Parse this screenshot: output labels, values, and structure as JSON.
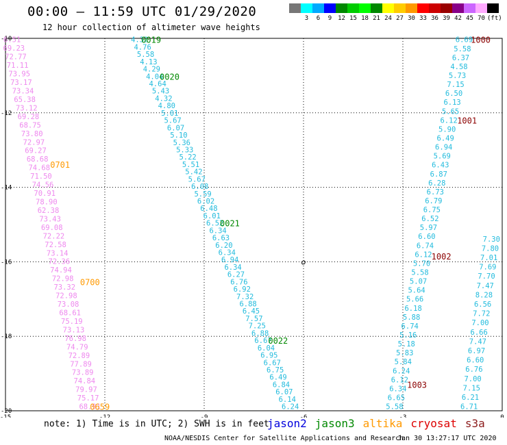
{
  "title": "00:00 – 11:59 UTC 01/29/2020",
  "subtitle": "12 hour collection of altimeter wave heights",
  "scale": {
    "labels": [
      "",
      "3",
      "6",
      "9",
      "12",
      "15",
      "18",
      "21",
      "24",
      "27",
      "30",
      "33",
      "36",
      "39",
      "42",
      "45",
      "70",
      "(ft)"
    ],
    "colors": [
      "#777777",
      "#00ffff",
      "#00aaff",
      "#0000ff",
      "#008800",
      "#00cc00",
      "#00ff00",
      "#008800",
      "#ffff00",
      "#ffcc00",
      "#ff9900",
      "#ff0000",
      "#cc0000",
      "#990000",
      "#880088",
      "#cc66ff",
      "#ffaaff",
      "#000000"
    ]
  },
  "note": "note: 1) Time is in UTC; 2) SWH is in feet",
  "legend": [
    {
      "name": "jason2",
      "color": "#0000dd"
    },
    {
      "name": "jason3",
      "color": "#008800"
    },
    {
      "name": "altika",
      "color": "#ff9900"
    },
    {
      "name": "cryosat",
      "color": "#dd0000"
    },
    {
      "name": "s3a",
      "color": "#8b1a1a"
    }
  ],
  "footer_left": "NOAA/NESDIS Center for Satellite Applications and Research",
  "footer_right": "Jan 30 13:27:17 UTC 2020",
  "chart_data": {
    "type": "scatter",
    "xlim": [
      -15,
      0
    ],
    "ylim": [
      -20,
      -10
    ],
    "xticks": [
      "-15",
      "-12",
      "-9",
      "-6",
      "-3",
      "0"
    ],
    "yticks": [
      "-10",
      "-12",
      "-14",
      "-16",
      "-18",
      "-20"
    ],
    "grid": true,
    "annotation": "o",
    "tracks": [
      {
        "color": "#ee88ee",
        "time_color": "#ff9900",
        "start": [
          -14.8,
          -10.05
        ],
        "end": [
          -12.45,
          -19.9
        ],
        "times": [
          {
            "label": "0701",
            "at": 0.34,
            "dx": 0.65
          },
          {
            "label": "0700",
            "at": 0.66,
            "dx": 0.8
          },
          {
            "label": "0659",
            "at": 1.0,
            "dx": 0.3
          }
        ],
        "values": [
          "6.51",
          "69.23",
          "72.77",
          "71.11",
          "73.95",
          "73.17",
          "73.34",
          "65.38",
          "73.12",
          "69.28",
          "68.75",
          "73.80",
          "72.97",
          "69.27",
          "68.68",
          "74.68",
          "71.50",
          "74.56",
          "70.91",
          "78.90",
          "62.38",
          "73.43",
          "69.08",
          "72.22",
          "72.58",
          "73.14",
          "72.36",
          "74.94",
          "72.98",
          "73.32",
          "72.98",
          "73.08",
          "68.61",
          "75.19",
          "73.13",
          "76.98",
          "74.79",
          "72.89",
          "77.89",
          "73.89",
          "74.84",
          "79.97",
          "75.17",
          "68.91"
        ]
      },
      {
        "color": "#22bbdd",
        "time_color": "#008800",
        "start": [
          -10.95,
          -10.05
        ],
        "end": [
          -6.4,
          -19.9
        ],
        "times": [
          {
            "label": "0019",
            "at": 0.0,
            "dx": 0.35
          },
          {
            "label": "0020",
            "at": 0.1,
            "dx": 0.45
          },
          {
            "label": "0021",
            "at": 0.5,
            "dx": 0.45
          },
          {
            "label": "0022",
            "at": 0.82,
            "dx": 0.45
          }
        ],
        "values": [
          "4.32",
          "4.76",
          "5.58",
          "4.13",
          "4.29",
          "4.04",
          "4.64",
          "5.43",
          "4.32",
          "4.80",
          "5.01",
          "5.67",
          "6.07",
          "5.10",
          "5.36",
          "5.33",
          "5.22",
          "5.51",
          "5.42",
          "5.67",
          "6.08",
          "5.59",
          "6.02",
          "6.48",
          "6.01",
          "6.52",
          "6.34",
          "6.63",
          "6.20",
          "6.34",
          "6.94",
          "6.34",
          "6.27",
          "6.76",
          "6.92",
          "7.32",
          "6.88",
          "6.45",
          "7.57",
          "7.25",
          "6.88",
          "6.67",
          "6.04",
          "6.95",
          "6.67",
          "6.75",
          "6.49",
          "6.84",
          "6.07",
          "6.14",
          "6.24"
        ]
      },
      {
        "color": "#22bbdd",
        "time_color": "#8b0000",
        "start": [
          -1.15,
          -10.05
        ],
        "end": [
          -3.25,
          -19.9
        ],
        "times": [
          {
            "label": "1000",
            "at": 0.0,
            "dx": 0.5
          },
          {
            "label": "1001",
            "at": 0.22,
            "dx": 0.55
          },
          {
            "label": "1002",
            "at": 0.59,
            "dx": 0.55
          },
          {
            "label": "1003",
            "at": 0.94,
            "dx": 0.55
          }
        ],
        "values": [
          "6.69",
          "5.58",
          "6.37",
          "4.58",
          "5.73",
          "7.15",
          "6.50",
          "6.13",
          "5.65",
          "6.12",
          "5.90",
          "6.49",
          "6.94",
          "5.69",
          "6.43",
          "6.87",
          "6.28",
          "6.73",
          "6.79",
          "6.75",
          "6.52",
          "5.97",
          "6.60",
          "6.74",
          "6.12",
          "5.70",
          "5.58",
          "5.07",
          "5.64",
          "5.66",
          "6.18",
          "5.88",
          "6.74",
          "5.16",
          "5.18",
          "5.83",
          "5.84",
          "6.24",
          "6.12",
          "6.34",
          "6.65",
          "5.58"
        ]
      },
      {
        "color": "#22bbdd",
        "time_color": "#8b0000",
        "start": [
          0.2,
          -11.9
        ],
        "end": [
          -1.0,
          -19.9
        ],
        "times": [],
        "values": [
          "",
          "",
          "",
          "",
          "",
          "",
          "",
          "",
          "",
          "",
          "",
          "",
          "",
          "",
          "7.30",
          "7.80",
          "7.01",
          "7.69",
          "7.70",
          "7.47",
          "8.28",
          "6.56",
          "7.72",
          "7.00",
          "6.66",
          "7.47",
          "6.97",
          "6.60",
          "6.76",
          "7.00",
          "7.15",
          "6.21",
          "6.71"
        ]
      }
    ]
  }
}
